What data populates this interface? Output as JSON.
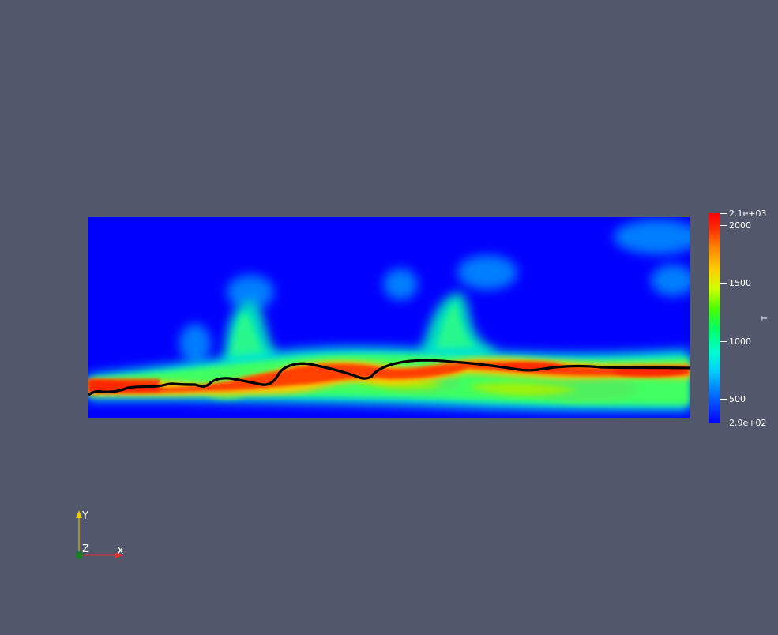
{
  "colorbar": {
    "title": "T",
    "ticks": [
      {
        "label": "2.1e+03",
        "value": 2100
      },
      {
        "label": "2000",
        "value": 2000
      },
      {
        "label": "1500",
        "value": 1500
      },
      {
        "label": "1000",
        "value": 1000
      },
      {
        "label": "500",
        "value": 500
      },
      {
        "label": "2.9e+02",
        "value": 290
      }
    ],
    "min": 290,
    "max": 2100
  },
  "axes": {
    "x_label": "X",
    "y_label": "Y",
    "z_label": "Z",
    "x_color": "#e03030",
    "y_color": "#e8d000",
    "z_color": "#1f7a2a"
  },
  "colors": {
    "background": "#52576b",
    "cold": "#0000ff",
    "hot": "#ff0000",
    "contour": "#000000"
  }
}
